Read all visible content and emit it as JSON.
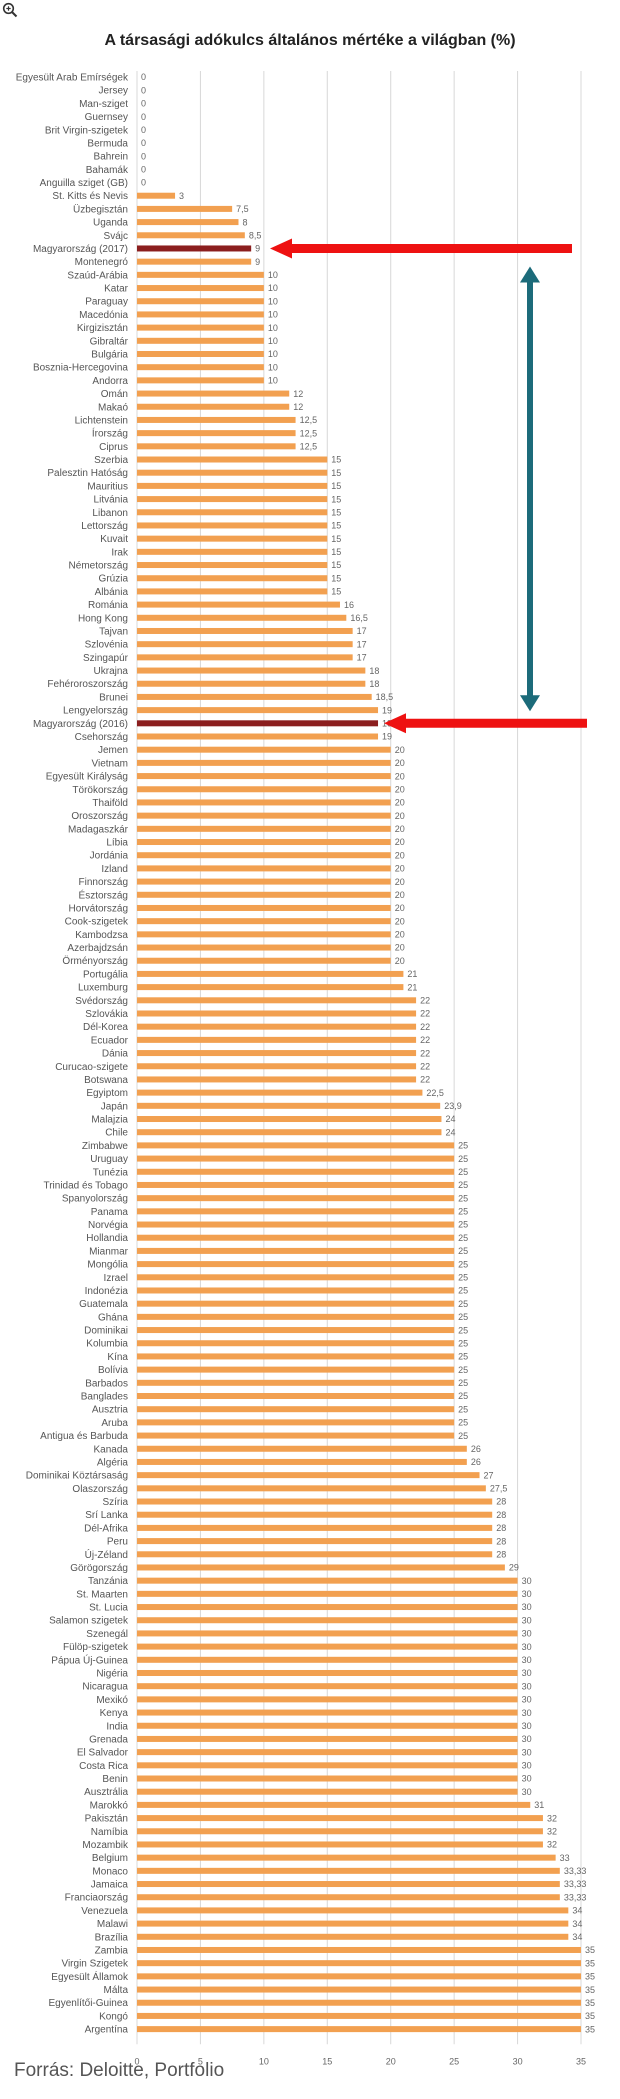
{
  "header": {
    "zoom_icon": "magnifier-plus-icon"
  },
  "title": "A társasági adókulcs általános mértéke a világban (%)",
  "source": "Forrás: Deloitte, Portfolio",
  "colors": {
    "bar": "#f2a050",
    "highlight": "#8b1e1e",
    "arrow_red": "#ee1111",
    "arrow_teal": "#1c6b7a",
    "grid": "#d8d8d8"
  },
  "chart_data": {
    "type": "bar",
    "orientation": "horizontal",
    "title": "A társasági adókulcs általános mértéke a világban (%)",
    "xlim": [
      0,
      35
    ],
    "xticks": [
      0,
      5,
      10,
      15,
      20,
      25,
      30,
      35
    ],
    "grid": true,
    "highlighted": [
      "Magyarország (2017)",
      "Magyarország (2016)"
    ],
    "categories": [
      "Egyesült Arab Emírségek",
      "Jersey",
      "Man-sziget",
      "Guernsey",
      "Brit Virgin-szigetek",
      "Bermuda",
      "Bahrein",
      "Bahamák",
      "Anguilla sziget (GB)",
      "St. Kitts és Nevis",
      "Üzbegisztán",
      "Uganda",
      "Svájc",
      "Magyarország (2017)",
      "Montenegró",
      "Szaúd-Arábia",
      "Katar",
      "Paraguay",
      "Macedónia",
      "Kirgizisztán",
      "Gibraltár",
      "Bulgária",
      "Bosznia-Hercegovina",
      "Andorra",
      "Omán",
      "Makaó",
      "Lichtenstein",
      "Írország",
      "Ciprus",
      "Szerbia",
      "Palesztin Hatóság",
      "Mauritius",
      "Litvánia",
      "Libanon",
      "Lettország",
      "Kuvait",
      "Irak",
      "Németország",
      "Grúzia",
      "Albánia",
      "Románia",
      "Hong Kong",
      "Tajvan",
      "Szlovénia",
      "Szingapúr",
      "Ukrajna",
      "Fehéroroszország",
      "Brunei",
      "Lengyelország",
      "Magyarország (2016)",
      "Csehország",
      "Jemen",
      "Vietnam",
      "Egyesült Királyság",
      "Törökország",
      "Thaiföld",
      "Oroszország",
      "Madagaszkár",
      "Líbia",
      "Jordánia",
      "Izland",
      "Finnország",
      "Észtország",
      "Horvátország",
      "Cook-szigetek",
      "Kambodzsa",
      "Azerbajdzsán",
      "Örményország",
      "Portugália",
      "Luxemburg",
      "Svédország",
      "Szlovákia",
      "Dél-Korea",
      "Ecuador",
      "Dánia",
      "Curucao-szigete",
      "Botswana",
      "Egyiptom",
      "Japán",
      "Malajzia",
      "Chile",
      "Zimbabwe",
      "Uruguay",
      "Tunézia",
      "Trinidad és Tobago",
      "Spanyolország",
      "Panama",
      "Norvégia",
      "Hollandia",
      "Mianmar",
      "Mongólia",
      "Izrael",
      "Indonézia",
      "Guatemala",
      "Ghána",
      "Dominikai",
      "Kolumbia",
      "Kína",
      "Bolívia",
      "Barbados",
      "Banglades",
      "Ausztria",
      "Aruba",
      "Antigua és Barbuda",
      "Kanada",
      "Algéria",
      "Dominikai Köztársaság",
      "Olaszország",
      "Szíria",
      "Srí Lanka",
      "Dél-Afrika",
      "Peru",
      "Új-Zéland",
      "Görögország",
      "Tanzánia",
      "St. Maarten",
      "St. Lucia",
      "Salamon szigetek",
      "Szenegál",
      "Fülöp-szigetek",
      "Pápua Új-Guinea",
      "Nigéria",
      "Nicaragua",
      "Mexikó",
      "Kenya",
      "India",
      "Grenada",
      "El Salvador",
      "Costa Rica",
      "Benin",
      "Ausztrália",
      "Marokkó",
      "Pakisztán",
      "Namíbia",
      "Mozambik",
      "Belgium",
      "Monaco",
      "Jamaica",
      "Franciaország",
      "Venezuela",
      "Malawi",
      "Brazília",
      "Zambia",
      "Virgin Szigetek",
      "Egyesült Államok",
      "Málta",
      "Egyenlítői-Guinea",
      "Kongó",
      "Argentína"
    ],
    "values": [
      0,
      0,
      0,
      0,
      0,
      0,
      0,
      0,
      0,
      3,
      7.5,
      8,
      8.5,
      9,
      9,
      10,
      10,
      10,
      10,
      10,
      10,
      10,
      10,
      10,
      12,
      12,
      12.5,
      12.5,
      12.5,
      15,
      15,
      15,
      15,
      15,
      15,
      15,
      15,
      15,
      15,
      15,
      16,
      16.5,
      17,
      17,
      17,
      18,
      18,
      18.5,
      19,
      19,
      19,
      20,
      20,
      20,
      20,
      20,
      20,
      20,
      20,
      20,
      20,
      20,
      20,
      20,
      20,
      20,
      20,
      20,
      21,
      21,
      22,
      22,
      22,
      22,
      22,
      22,
      22,
      22.5,
      23.9,
      24,
      24,
      25,
      25,
      25,
      25,
      25,
      25,
      25,
      25,
      25,
      25,
      25,
      25,
      25,
      25,
      25,
      25,
      25,
      25,
      25,
      25,
      25,
      25,
      25,
      26,
      26,
      27,
      27.5,
      28,
      28,
      28,
      28,
      28,
      29,
      30,
      30,
      30,
      30,
      30,
      30,
      30,
      30,
      30,
      30,
      30,
      30,
      30,
      30,
      30,
      30,
      30,
      31,
      32,
      32,
      32,
      33,
      33.33,
      33.33,
      33.33,
      34,
      34,
      34,
      35,
      35,
      35,
      35,
      35,
      35,
      35
    ],
    "value_labels": [
      "0",
      "0",
      "0",
      "0",
      "0",
      "0",
      "0",
      "0",
      "0",
      "3",
      "7,5",
      "8",
      "8,5",
      "9",
      "9",
      "10",
      "10",
      "10",
      "10",
      "10",
      "10",
      "10",
      "10",
      "10",
      "12",
      "12",
      "12,5",
      "12,5",
      "12,5",
      "15",
      "15",
      "15",
      "15",
      "15",
      "15",
      "15",
      "15",
      "15",
      "15",
      "15",
      "16",
      "16,5",
      "17",
      "17",
      "17",
      "18",
      "18",
      "18,5",
      "19",
      "19",
      "19",
      "20",
      "20",
      "20",
      "20",
      "20",
      "20",
      "20",
      "20",
      "20",
      "20",
      "20",
      "20",
      "20",
      "20",
      "20",
      "20",
      "20",
      "21",
      "21",
      "22",
      "22",
      "22",
      "22",
      "22",
      "22",
      "22",
      "22,5",
      "23,9",
      "24",
      "24",
      "25",
      "25",
      "25",
      "25",
      "25",
      "25",
      "25",
      "25",
      "25",
      "25",
      "25",
      "25",
      "25",
      "25",
      "25",
      "25",
      "25",
      "25",
      "25",
      "25",
      "25",
      "25",
      "25",
      "26",
      "26",
      "27",
      "27,5",
      "28",
      "28",
      "28",
      "28",
      "28",
      "29",
      "30",
      "30",
      "30",
      "30",
      "30",
      "30",
      "30",
      "30",
      "30",
      "30",
      "30",
      "30",
      "30",
      "30",
      "30",
      "30",
      "30",
      "31",
      "32",
      "32",
      "32",
      "33",
      "33,33",
      "33,33",
      "33,33",
      "34",
      "34",
      "34",
      "35",
      "35",
      "35",
      "35",
      "35",
      "35",
      "35"
    ]
  }
}
